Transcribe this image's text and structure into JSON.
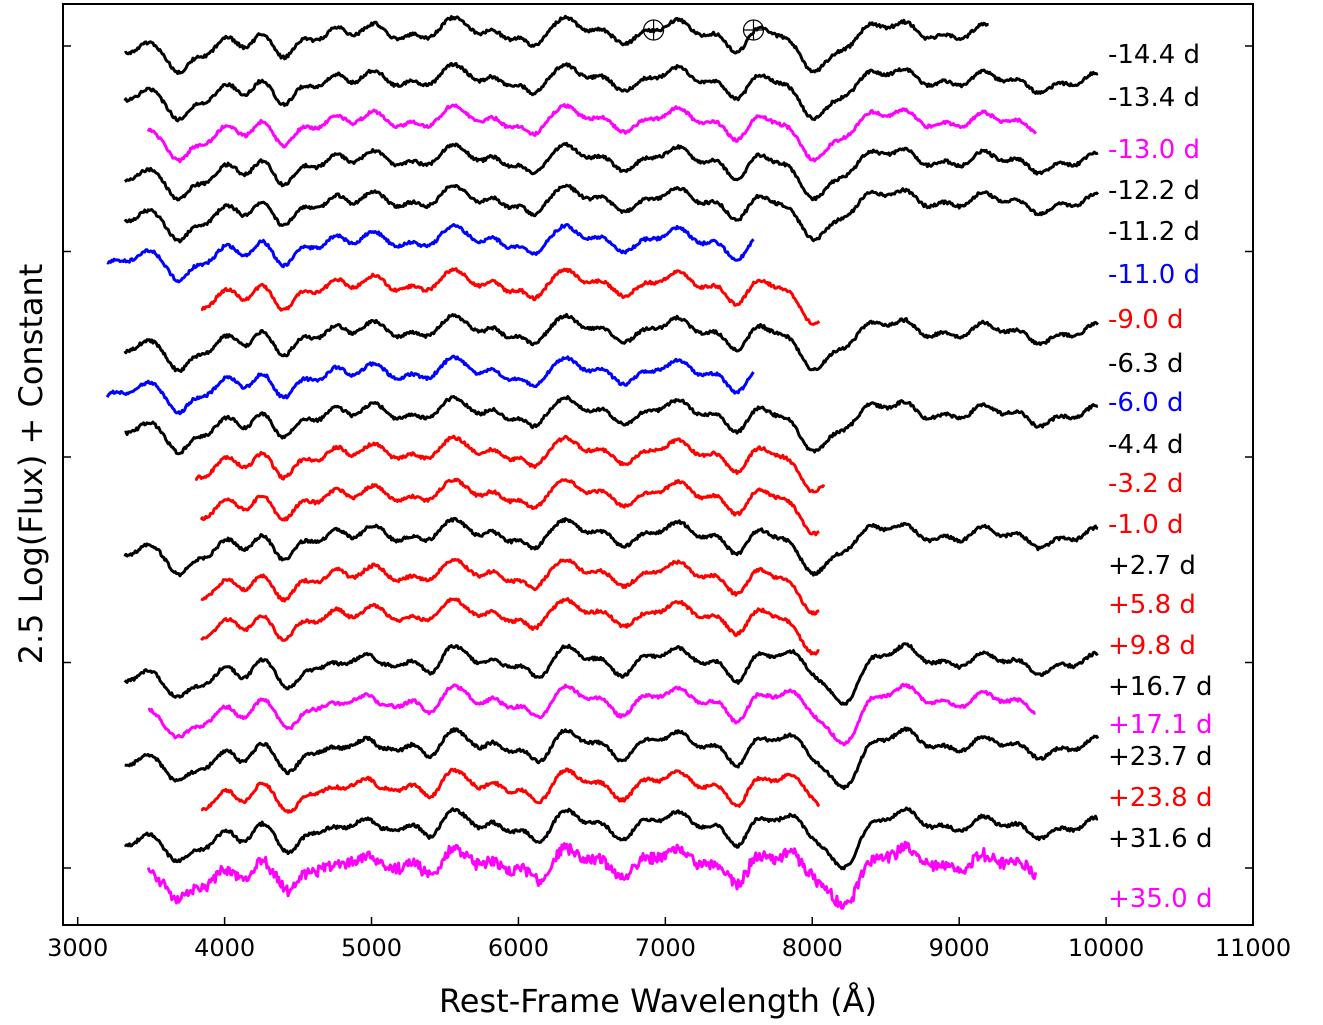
{
  "chart_data": {
    "type": "line",
    "xlabel": "Rest-Frame Wavelength (Å)",
    "ylabel": "2.5 Log(Flux) + Constant",
    "xlim": [
      2900,
      11000
    ],
    "xticks": [
      "3000",
      "4000",
      "5000",
      "6000",
      "7000",
      "8000",
      "9000",
      "10000",
      "11000"
    ],
    "y_ticks_unlabeled": 5,
    "grid": false,
    "legend": "labels at right end of each spectrum",
    "telluric_markers": [
      6920,
      7600
    ],
    "colors": {
      "black": "#000000",
      "magenta": "#ff00ff",
      "blue": "#0000ff",
      "red": "#ff0000"
    },
    "series": [
      {
        "name": "-14.4 d",
        "color": "#000000",
        "x_range": [
          3320,
          9200
        ]
      },
      {
        "name": "-13.4 d",
        "color": "#000000",
        "x_range": [
          3320,
          9950
        ]
      },
      {
        "name": "-13.0 d",
        "color": "#ff00ff",
        "x_range": [
          3480,
          9520
        ]
      },
      {
        "name": "-12.2 d",
        "color": "#000000",
        "x_range": [
          3320,
          9950
        ]
      },
      {
        "name": "-11.2 d",
        "color": "#000000",
        "x_range": [
          3320,
          9950
        ]
      },
      {
        "name": "-11.0 d",
        "color": "#0000ff",
        "x_range": [
          3200,
          7600
        ]
      },
      {
        "name": "-9.0 d",
        "color": "#ff0000",
        "x_range": [
          3840,
          8050
        ]
      },
      {
        "name": "-6.3 d",
        "color": "#000000",
        "x_range": [
          3320,
          9950
        ]
      },
      {
        "name": "-6.0 d",
        "color": "#0000ff",
        "x_range": [
          3200,
          7600
        ]
      },
      {
        "name": "-4.4 d",
        "color": "#000000",
        "x_range": [
          3320,
          9950
        ]
      },
      {
        "name": "-3.2 d",
        "color": "#ff0000",
        "x_range": [
          3800,
          8080
        ]
      },
      {
        "name": "-1.0 d",
        "color": "#ff0000",
        "x_range": [
          3840,
          8050
        ]
      },
      {
        "name": "+2.7 d",
        "color": "#000000",
        "x_range": [
          3320,
          9950
        ]
      },
      {
        "name": "+5.8 d",
        "color": "#ff0000",
        "x_range": [
          3840,
          8050
        ]
      },
      {
        "name": "+9.8 d",
        "color": "#ff0000",
        "x_range": [
          3840,
          8050
        ]
      },
      {
        "name": "+16.7 d",
        "color": "#000000",
        "x_range": [
          3320,
          9950
        ]
      },
      {
        "name": "+17.1 d",
        "color": "#ff00ff",
        "x_range": [
          3480,
          9520
        ]
      },
      {
        "name": "+23.7 d",
        "color": "#000000",
        "x_range": [
          3320,
          9950
        ]
      },
      {
        "name": "+23.8 d",
        "color": "#ff0000",
        "x_range": [
          3840,
          8050
        ]
      },
      {
        "name": "+31.6 d",
        "color": "#000000",
        "x_range": [
          3320,
          9950
        ]
      },
      {
        "name": "+35.0 d",
        "color": "#ff00ff",
        "x_range": [
          3480,
          9520
        ]
      }
    ]
  }
}
